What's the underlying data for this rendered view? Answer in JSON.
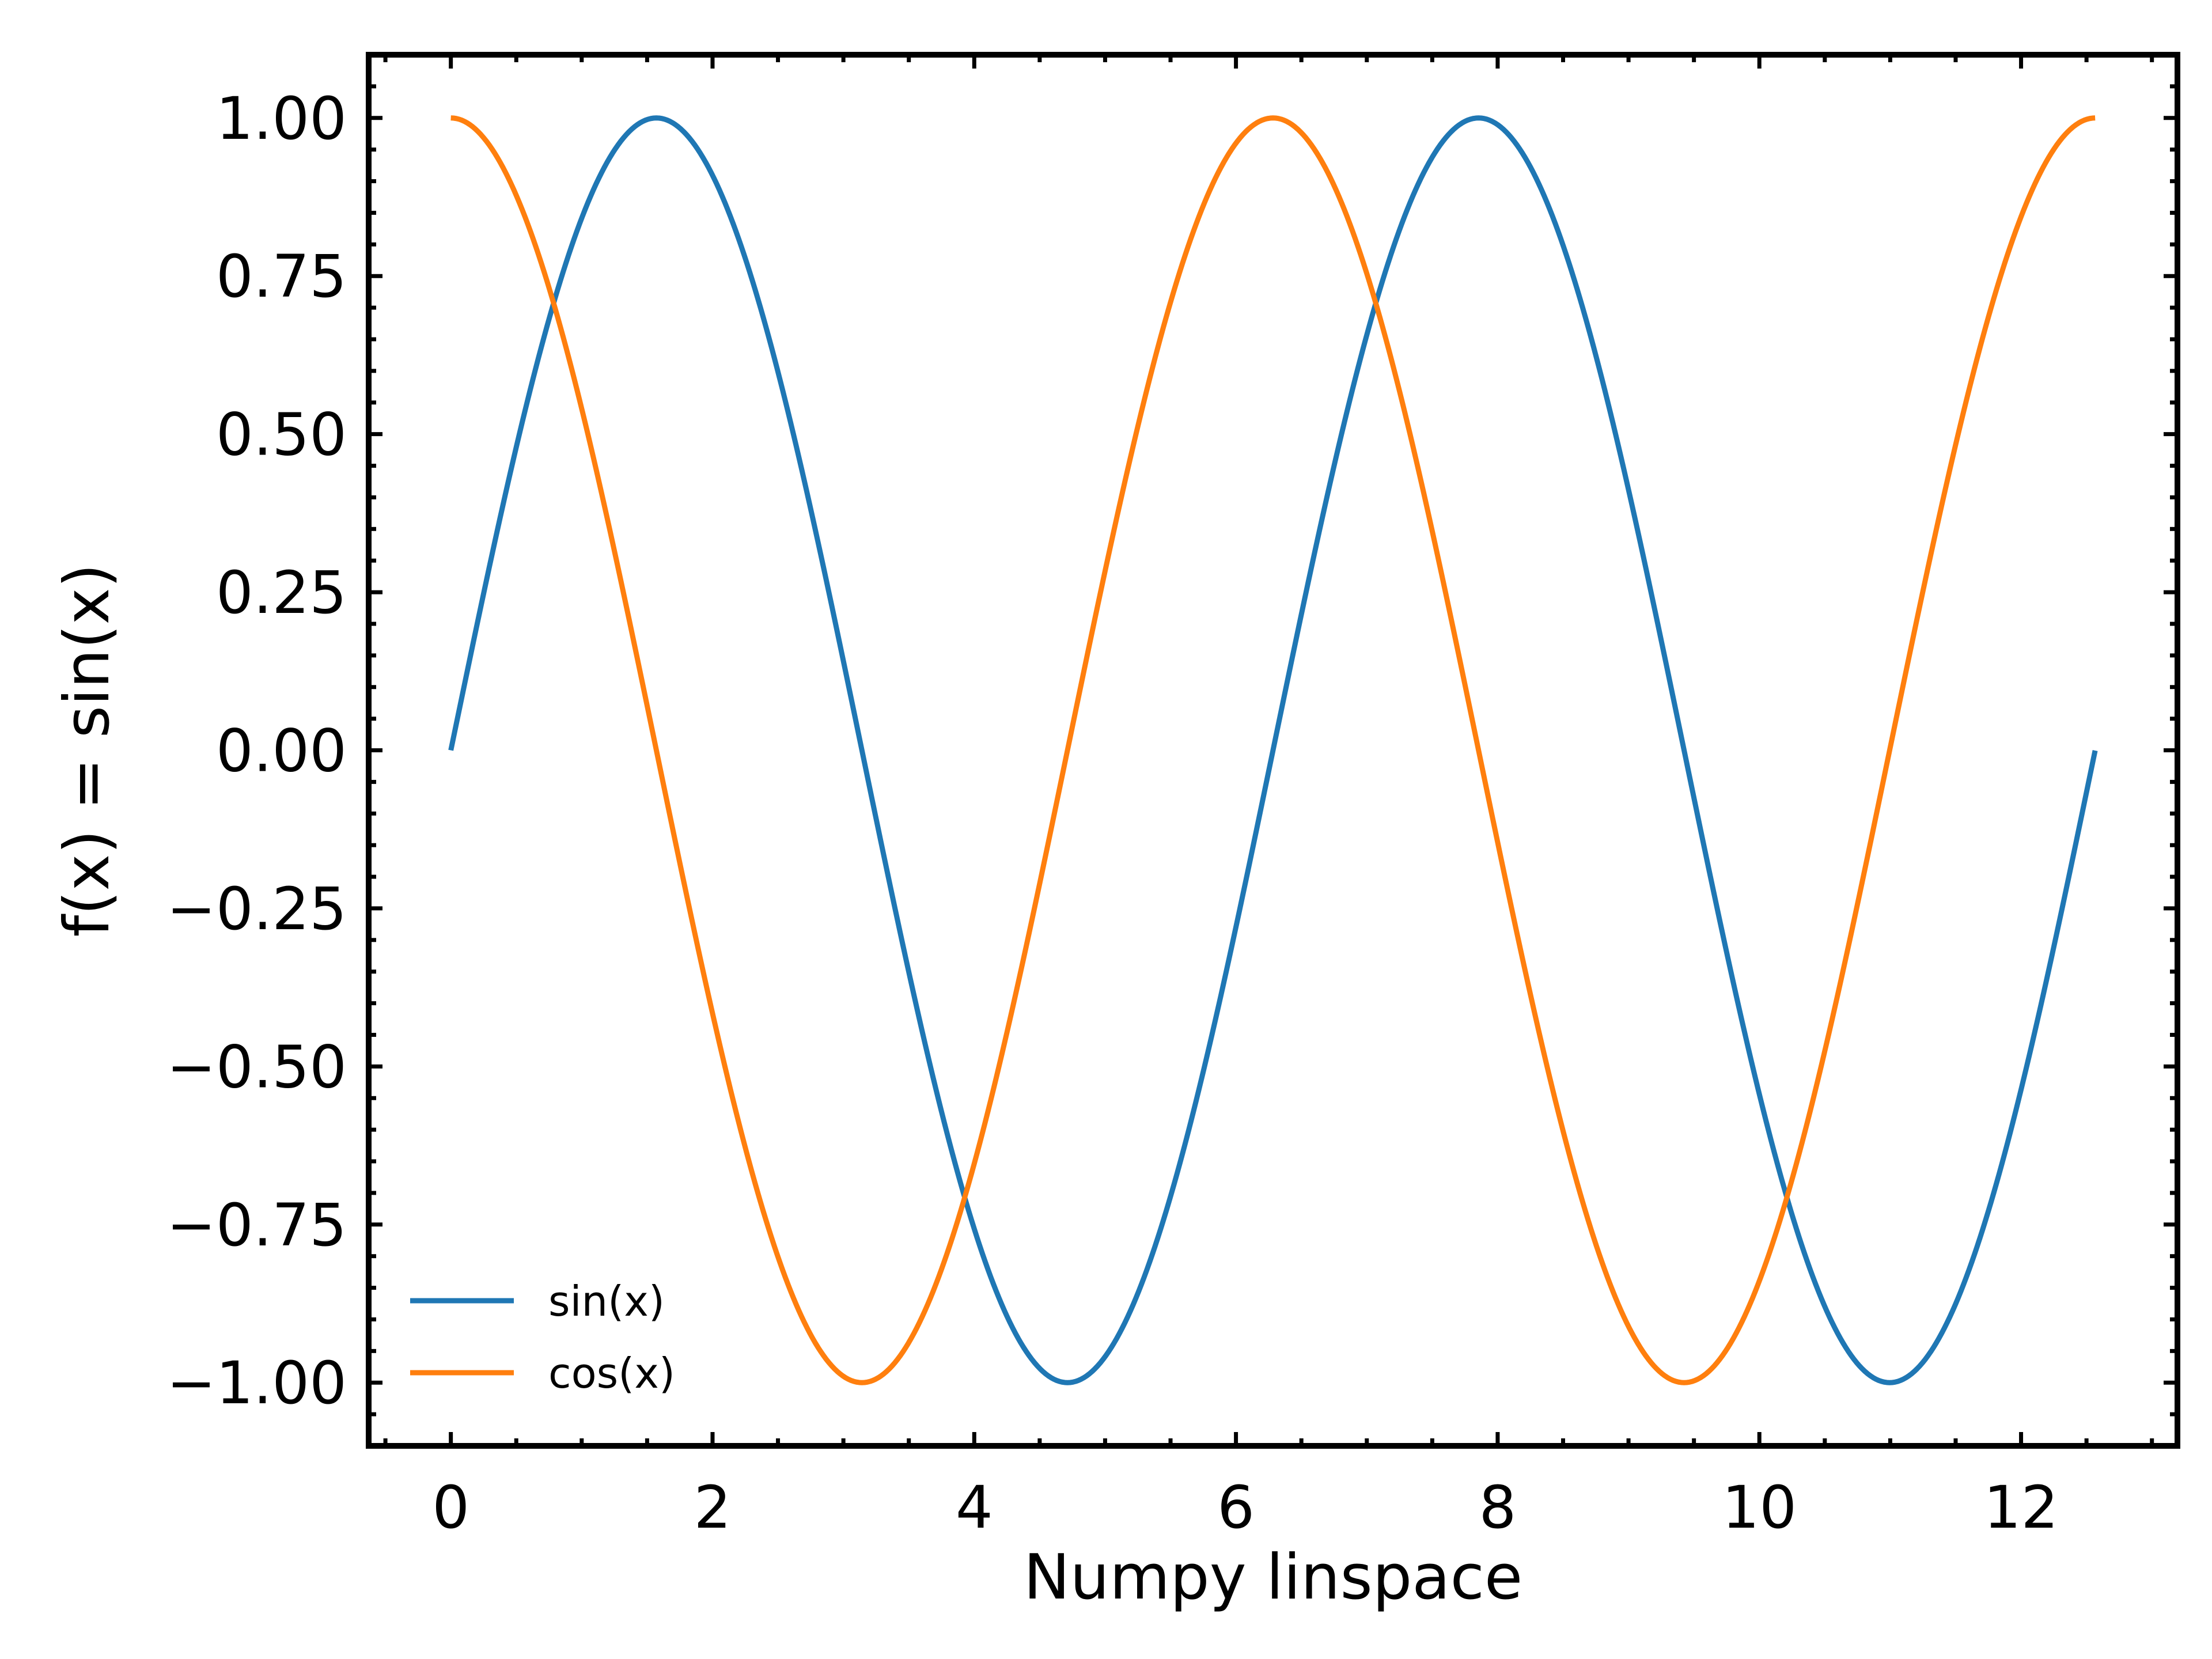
{
  "chart_data": {
    "type": "line",
    "title": "",
    "xlabel": "Numpy linspace",
    "ylabel": "f(x) = sin(x)",
    "xlim": [
      -0.628,
      13.195
    ],
    "ylim": [
      -1.1,
      1.1
    ],
    "x_range": [
      0,
      12.566
    ],
    "x_ticks": [
      0,
      2,
      4,
      6,
      8,
      10,
      12
    ],
    "x_tick_labels": [
      "0",
      "2",
      "4",
      "6",
      "8",
      "10",
      "12"
    ],
    "y_ticks": [
      1.0,
      0.75,
      0.5,
      0.25,
      0.0,
      -0.25,
      -0.5,
      -0.75,
      -1.0
    ],
    "y_tick_labels": [
      "1.00",
      "0.75",
      "0.50",
      "0.25",
      "0.00",
      "−0.25",
      "−0.50",
      "−0.75",
      "−1.00"
    ],
    "x_minor_step": 0.5,
    "y_minor_step": 0.05,
    "tick_direction": "in",
    "ticks_on_all_sides": true,
    "grid": false,
    "legend_position": "lower-left",
    "series": [
      {
        "name": "sin(x)",
        "function": "sin",
        "color": "#1f77b4"
      },
      {
        "name": "cos(x)",
        "function": "cos",
        "color": "#ff7f0e"
      }
    ]
  }
}
